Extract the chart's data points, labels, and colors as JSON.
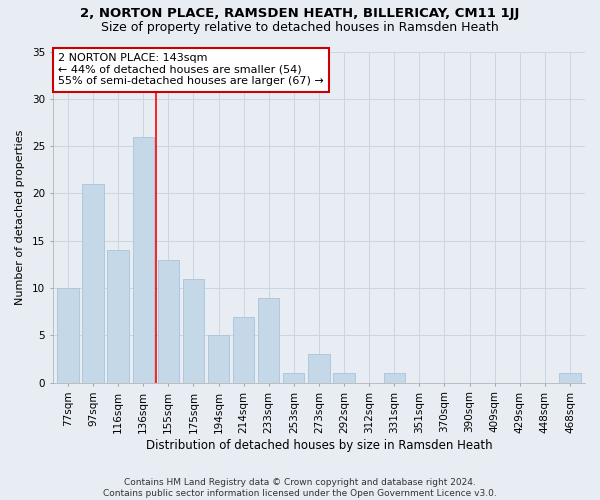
{
  "title1": "2, NORTON PLACE, RAMSDEN HEATH, BILLERICAY, CM11 1JJ",
  "title2": "Size of property relative to detached houses in Ramsden Heath",
  "xlabel": "Distribution of detached houses by size in Ramsden Heath",
  "ylabel": "Number of detached properties",
  "categories": [
    "77sqm",
    "97sqm",
    "116sqm",
    "136sqm",
    "155sqm",
    "175sqm",
    "194sqm",
    "214sqm",
    "233sqm",
    "253sqm",
    "273sqm",
    "292sqm",
    "312sqm",
    "331sqm",
    "351sqm",
    "370sqm",
    "390sqm",
    "409sqm",
    "429sqm",
    "448sqm",
    "468sqm"
  ],
  "values": [
    10,
    21,
    14,
    26,
    13,
    11,
    5,
    7,
    9,
    1,
    3,
    1,
    0,
    1,
    0,
    0,
    0,
    0,
    0,
    0,
    1
  ],
  "bar_color": "#c5d8e8",
  "bar_edge_color": "#a8c4dc",
  "vline_x": 3.5,
  "annotation_line1": "2 NORTON PLACE: 143sqm",
  "annotation_line2": "← 44% of detached houses are smaller (54)",
  "annotation_line3": "55% of semi-detached houses are larger (67) →",
  "annotation_box_color": "#ffffff",
  "annotation_box_edge": "#cc0000",
  "ylim": [
    0,
    35
  ],
  "yticks": [
    0,
    5,
    10,
    15,
    20,
    25,
    30,
    35
  ],
  "grid_color": "#ccd6e0",
  "background_color": "#e8edf4",
  "footer": "Contains HM Land Registry data © Crown copyright and database right 2024.\nContains public sector information licensed under the Open Government Licence v3.0.",
  "title1_fontsize": 9.5,
  "title2_fontsize": 9,
  "xlabel_fontsize": 8.5,
  "ylabel_fontsize": 8,
  "tick_fontsize": 7.5,
  "annotation_fontsize": 8,
  "footer_fontsize": 6.5
}
